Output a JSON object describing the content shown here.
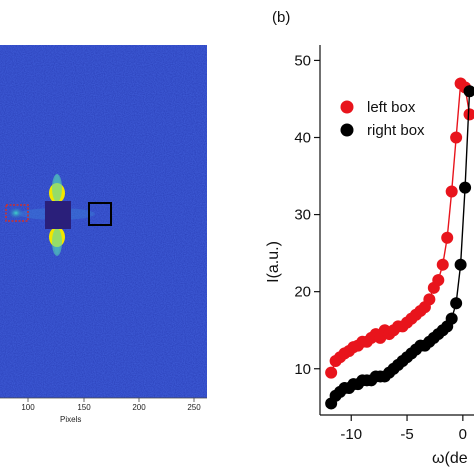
{
  "panel_b_label": "(b)",
  "image_panel": {
    "x_ticks": [
      "100",
      "150",
      "200",
      "250"
    ],
    "x_label": "Pixels",
    "colors": {
      "background": "#2a3fb8",
      "hot": "#f2e600",
      "center": "#2a1f7a",
      "left_box": "#d0302a",
      "right_box": "#000000"
    }
  },
  "chart_data": {
    "type": "scatter",
    "xlabel": "ω(de",
    "ylabel": "I(a.u.)",
    "xlim": [
      -12.8,
      1.0
    ],
    "ylim": [
      4,
      52
    ],
    "x_ticks": [
      -10,
      -5,
      0
    ],
    "x_tick_labels": [
      "-10",
      "-5",
      "0"
    ],
    "y_ticks": [
      10,
      20,
      30,
      40,
      50
    ],
    "y_tick_labels": [
      "10",
      "20",
      "30",
      "40",
      "50"
    ],
    "legend_position": "top-right",
    "series": [
      {
        "name": "left box",
        "color": "#e8141c",
        "x": [
          -11.8,
          -11.4,
          -11.0,
          -10.6,
          -10.2,
          -9.8,
          -9.4,
          -9.0,
          -8.6,
          -8.2,
          -7.8,
          -7.4,
          -7.0,
          -6.6,
          -6.2,
          -5.8,
          -5.4,
          -5.0,
          -4.6,
          -4.2,
          -3.8,
          -3.4,
          -3.0,
          -2.6,
          -2.2,
          -1.8,
          -1.4,
          -1.0,
          -0.6,
          -0.2,
          0.2,
          0.6
        ],
        "y": [
          9.5,
          11.0,
          11.5,
          12.0,
          12.3,
          12.8,
          13.0,
          13.5,
          13.5,
          14.0,
          14.5,
          14.0,
          15.0,
          14.5,
          15.0,
          15.5,
          15.5,
          16.0,
          16.5,
          17.0,
          17.5,
          18.0,
          19.0,
          20.5,
          21.5,
          23.5,
          27.0,
          33.0,
          40.0,
          47.0,
          46.5,
          43.0
        ]
      },
      {
        "name": "right box",
        "color": "#000000",
        "x": [
          -11.8,
          -11.4,
          -11.0,
          -10.6,
          -10.2,
          -9.8,
          -9.4,
          -9.0,
          -8.6,
          -8.2,
          -7.8,
          -7.4,
          -7.0,
          -6.6,
          -6.2,
          -5.8,
          -5.4,
          -5.0,
          -4.6,
          -4.2,
          -3.8,
          -3.4,
          -3.0,
          -2.6,
          -2.2,
          -1.8,
          -1.4,
          -1.0,
          -0.6,
          -0.2,
          0.2,
          0.6
        ],
        "y": [
          5.5,
          6.5,
          7.0,
          7.5,
          7.5,
          8.0,
          8.0,
          8.5,
          8.5,
          8.5,
          9.0,
          9.0,
          9.0,
          9.5,
          10.0,
          10.5,
          11.0,
          11.5,
          12.0,
          12.5,
          13.0,
          13.0,
          13.5,
          14.0,
          14.5,
          15.0,
          15.5,
          16.5,
          18.5,
          23.5,
          33.5,
          46.0
        ]
      }
    ]
  }
}
